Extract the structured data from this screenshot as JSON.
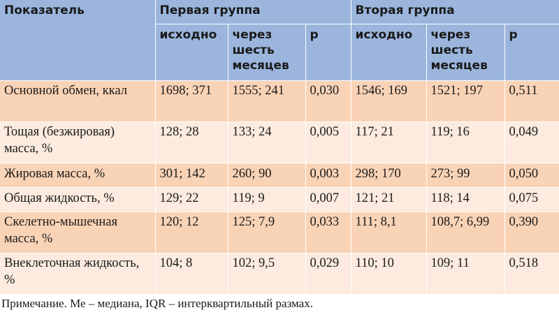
{
  "header": {
    "indicator": "Показатель",
    "group1": "Первая группа",
    "group2": "Вторая группа",
    "baseline": "исходно",
    "six_months": "через шесть месяцев",
    "p": "р"
  },
  "rows": [
    {
      "label": "Основной обмен, ккал",
      "g1_base": "1698; 371",
      "g1_6m": "1555; 241",
      "g1_p": "0,030",
      "g2_base": "1546; 169",
      "g2_6m": "1521; 197",
      "g2_p": "0,511"
    },
    {
      "label": "Тощая (безжировая) масса, %",
      "g1_base": "128; 28",
      "g1_6m": "133; 24",
      "g1_p": "0,005",
      "g2_base": "117; 21",
      "g2_6m": "119; 16",
      "g2_p": "0,049"
    },
    {
      "label": "Жировая масса, %",
      "g1_base": "301; 142",
      "g1_6m": "260; 90",
      "g1_p": "0,003",
      "g2_base": "298; 170",
      "g2_6m": "273; 99",
      "g2_p": "0,050"
    },
    {
      "label": "Общая жидкость, %",
      "g1_base": "129; 22",
      "g1_6m": "119; 9",
      "g1_p": "0,007",
      "g2_base": "121; 21",
      "g2_6m": "118; 14",
      "g2_p": "0,075"
    },
    {
      "label": "Скелетно-мышечная масса, %",
      "g1_base": "120; 12",
      "g1_6m": "125; 7,9",
      "g1_p": "0,033",
      "g2_base": "111; 8,1",
      "g2_6m": "108,7; 6,99",
      "g2_p": "0,390"
    },
    {
      "label": "Внеклеточная жидкость, %",
      "g1_base": "104; 8",
      "g1_6m": "102; 9,5",
      "g1_p": "0,029",
      "g2_base": "110; 10",
      "g2_6m": "109; 11",
      "g2_p": "0,518"
    }
  ],
  "note": "Примечание. Ме – медиана, IQR – интерквартильный размах.",
  "colors": {
    "header_bg": "#9bb5dd",
    "row_dark": "#f9d3b6",
    "row_light": "#fcebde"
  }
}
